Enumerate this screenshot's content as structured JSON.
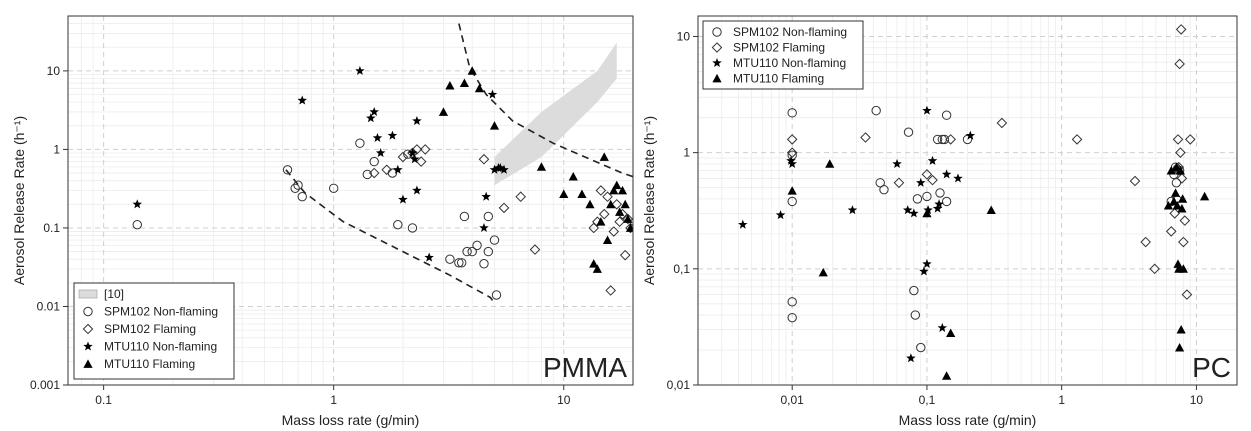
{
  "chart_data": [
    {
      "type": "scatter",
      "panel_label": "PMMA",
      "xlabel": "Mass loss rate (g/min)",
      "ylabel": "Aerosol Release Rate (h⁻¹)",
      "xscale": "log",
      "yscale": "log",
      "xlim": [
        0.07,
        20
      ],
      "ylim": [
        0.001,
        50
      ],
      "x_ticks": [
        "0.1",
        "1",
        "10"
      ],
      "y_ticks": [
        "0.001",
        "0.01",
        "0.1",
        "1",
        "10"
      ],
      "grid": true,
      "legend_position": "bottom-left",
      "band": {
        "name": "[10]",
        "x": [
          5.0,
          8.0,
          14.0,
          17.0
        ],
        "lower": [
          0.35,
          0.8,
          4.0,
          8.0
        ],
        "upper": [
          0.8,
          3.0,
          10.0,
          23.0
        ]
      },
      "envelope": [
        {
          "x": [
            0.62,
            0.75,
            1.1,
            2.0,
            3.2,
            4.8,
            5.0
          ],
          "y": [
            0.55,
            0.28,
            0.12,
            0.05,
            0.025,
            0.013,
            0.011
          ]
        },
        {
          "x": [
            3.5,
            3.9,
            4.6,
            6.0,
            9.0,
            13.0,
            18.0,
            20.0
          ],
          "y": [
            40.0,
            11.0,
            5.0,
            2.3,
            1.2,
            0.75,
            0.5,
            0.45
          ]
        }
      ],
      "series": [
        {
          "name": "SPM102 Non-flaming",
          "marker": "circle",
          "x": [
            0.14,
            0.63,
            0.68,
            0.7,
            0.73,
            1.0,
            1.3,
            1.4,
            1.5,
            1.8,
            1.9,
            2.1,
            2.2,
            3.2,
            3.5,
            3.6,
            3.7,
            3.8,
            4.0,
            4.2,
            4.5,
            4.7,
            4.7,
            5.0,
            5.1
          ],
          "y": [
            0.11,
            0.55,
            0.32,
            0.35,
            0.25,
            0.32,
            1.2,
            0.48,
            0.7,
            0.5,
            0.11,
            0.87,
            0.1,
            0.04,
            0.036,
            0.036,
            0.14,
            0.05,
            0.05,
            0.06,
            0.035,
            0.14,
            0.05,
            0.07,
            0.014
          ]
        },
        {
          "name": "SPM102 Flaming",
          "marker": "diamond",
          "x": [
            1.5,
            1.7,
            2.0,
            2.2,
            2.3,
            2.4,
            2.5,
            4.5,
            5.5,
            6.5,
            7.5,
            13.5,
            14.0,
            14.5,
            15.0,
            15.5,
            16.0,
            16.5,
            17.0,
            17.5,
            18.0,
            18.5,
            19.0,
            19.5
          ],
          "y": [
            0.5,
            0.55,
            0.8,
            0.9,
            1.0,
            0.7,
            1.0,
            0.75,
            0.18,
            0.25,
            0.053,
            0.1,
            0.12,
            0.3,
            0.15,
            0.25,
            0.016,
            0.09,
            0.2,
            0.12,
            0.15,
            0.045,
            0.13,
            0.1
          ]
        },
        {
          "name": "MTU110 Non-flaming",
          "marker": "star",
          "x": [
            0.14,
            0.73,
            1.3,
            1.45,
            1.5,
            1.55,
            1.6,
            1.8,
            1.9,
            2.0,
            2.2,
            2.25,
            2.3,
            2.3,
            2.6,
            4.5,
            4.9,
            5.0,
            5.2,
            5.3,
            5.5,
            4.6
          ],
          "y": [
            0.2,
            4.2,
            10.0,
            2.5,
            3.0,
            1.4,
            0.9,
            1.5,
            0.55,
            0.23,
            0.9,
            0.75,
            2.3,
            0.3,
            0.042,
            0.1,
            5.0,
            0.55,
            0.58,
            0.58,
            0.55,
            0.25
          ]
        },
        {
          "name": "MTU110 Flaming",
          "marker": "triangle",
          "x": [
            3.0,
            3.2,
            3.7,
            4.0,
            4.3,
            5.0,
            8.0,
            10.0,
            11.0,
            12.0,
            13.0,
            13.5,
            14.0,
            14.5,
            15.0,
            15.5,
            16.0,
            16.5,
            17.0,
            17.5,
            18.0,
            18.5,
            19.0,
            19.5
          ],
          "y": [
            3.0,
            6.5,
            7.0,
            10.0,
            6.0,
            2.0,
            0.6,
            0.27,
            0.45,
            0.27,
            0.2,
            0.035,
            0.03,
            0.12,
            0.8,
            0.07,
            0.2,
            0.3,
            0.35,
            0.16,
            0.3,
            0.2,
            0.13,
            0.1
          ]
        }
      ],
      "legend": [
        "[10]",
        "SPM102 Non-flaming",
        "SPM102 Flaming",
        "MTU110 Non-flaming",
        "MTU110 Flaming"
      ]
    },
    {
      "type": "scatter",
      "panel_label": "PC",
      "xlabel": "Mass loss rate (g/min)",
      "ylabel": "Aerosol Release Rate (h⁻¹)",
      "xscale": "log",
      "yscale": "log",
      "xlim": [
        0.002,
        20
      ],
      "ylim": [
        0.01,
        15
      ],
      "x_ticks": [
        "0,01",
        "0,1",
        "1",
        "10"
      ],
      "y_ticks": [
        "0,01",
        "0,1",
        "1",
        "10"
      ],
      "grid": true,
      "legend_position": "top-left",
      "series": [
        {
          "name": "SPM102 Non-flaming",
          "marker": "circle",
          "x": [
            0.01,
            0.01,
            0.01,
            0.01,
            0.01,
            0.042,
            0.045,
            0.048,
            0.073,
            0.08,
            0.082,
            0.085,
            0.09,
            0.1,
            0.12,
            0.125,
            0.13,
            0.14,
            0.135,
            0.14,
            0.2,
            6.5,
            6.8,
            7.0,
            7.1,
            7.2,
            7.5
          ],
          "y": [
            2.2,
            0.95,
            0.38,
            0.052,
            0.038,
            2.3,
            0.55,
            0.48,
            1.5,
            0.065,
            0.04,
            0.4,
            0.021,
            0.42,
            1.3,
            0.45,
            1.3,
            0.38,
            1.3,
            2.1,
            1.3,
            0.38,
            0.65,
            0.75,
            0.55,
            0.72,
            0.7
          ]
        },
        {
          "name": "SPM102 Flaming",
          "marker": "diamond",
          "x": [
            0.01,
            0.01,
            0.035,
            0.062,
            0.1,
            0.11,
            0.15,
            0.36,
            1.3,
            3.5,
            4.2,
            4.9,
            6.5,
            6.9,
            7.3,
            7.5,
            7.6,
            7.7,
            7.8,
            8.0,
            8.2,
            8.5,
            9.0,
            7.4,
            7.2
          ],
          "y": [
            1.3,
            1.0,
            1.35,
            0.55,
            0.65,
            0.58,
            1.3,
            1.8,
            1.3,
            0.57,
            0.17,
            0.1,
            0.21,
            0.3,
            1.3,
            5.8,
            1.0,
            11.5,
            0.6,
            0.17,
            0.26,
            0.06,
            1.3,
            0.75,
            0.4
          ]
        },
        {
          "name": "MTU110 Non-flaming",
          "marker": "star",
          "x": [
            0.0043,
            0.0082,
            0.0098,
            0.01,
            0.028,
            0.06,
            0.072,
            0.076,
            0.09,
            0.095,
            0.1,
            0.1,
            0.102,
            0.11,
            0.12,
            0.123,
            0.13,
            0.14,
            0.17,
            0.21,
            0.08
          ],
          "y": [
            0.24,
            0.29,
            0.85,
            0.8,
            0.32,
            0.8,
            0.32,
            0.017,
            0.55,
            0.095,
            0.11,
            2.3,
            0.32,
            0.85,
            0.33,
            0.36,
            0.031,
            0.65,
            0.6,
            1.4,
            0.3
          ]
        },
        {
          "name": "MTU110 Flaming",
          "marker": "triangle",
          "x": [
            0.01,
            0.017,
            0.019,
            0.1,
            0.14,
            0.15,
            0.3,
            6.2,
            6.5,
            6.8,
            7.0,
            7.2,
            7.3,
            7.4,
            7.5,
            7.6,
            7.7,
            7.8,
            7.9,
            8.0,
            11.5,
            7.1
          ],
          "y": [
            0.47,
            0.093,
            0.8,
            0.3,
            0.012,
            0.028,
            0.32,
            0.35,
            0.7,
            0.38,
            0.45,
            0.35,
            0.11,
            0.1,
            0.021,
            0.7,
            0.03,
            0.33,
            0.4,
            0.1,
            0.42,
            0.75
          ]
        }
      ],
      "legend": [
        "SPM102 Non-flaming",
        "SPM102 Flaming",
        "MTU110 Non-flaming",
        "MTU110 Flaming"
      ]
    }
  ]
}
